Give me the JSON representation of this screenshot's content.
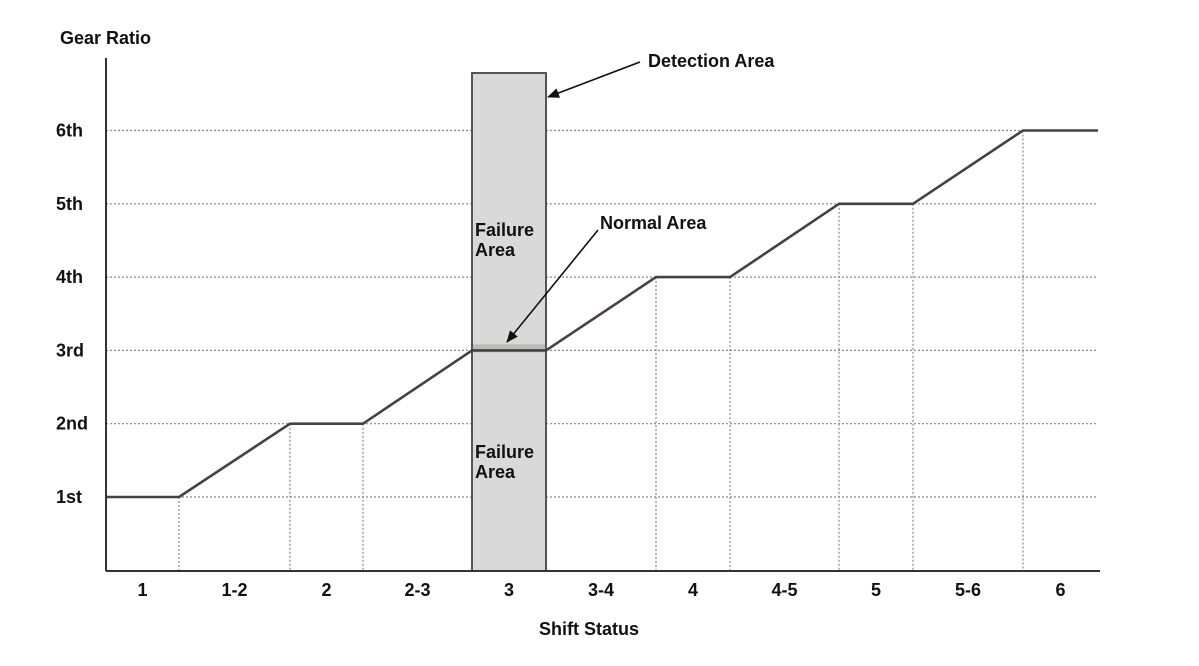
{
  "y_axis_title": "Gear Ratio",
  "x_axis_title": "Shift Status",
  "y_ticks": [
    "1st",
    "2nd",
    "3rd",
    "4th",
    "5th",
    "6th"
  ],
  "x_ticks": [
    "1",
    "1-2",
    "2",
    "2-3",
    "3",
    "3-4",
    "4",
    "4-5",
    "5",
    "5-6",
    "6"
  ],
  "annotations": {
    "detection_area": "Detection Area",
    "normal_area": "Normal Area",
    "failure_area_upper": [
      "Failure",
      "Area"
    ],
    "failure_area_lower": [
      "Failure",
      "Area"
    ]
  },
  "colors": {
    "line": "#4a4042",
    "axis": "#333333",
    "grid": "#888888",
    "detection_fill": "#d9d9d9",
    "detection_stroke": "#555555"
  },
  "chart_data": {
    "type": "line",
    "categories": [
      "1",
      "1-2",
      "2",
      "2-3",
      "3",
      "3-4",
      "4",
      "4-5",
      "5",
      "5-6",
      "6"
    ],
    "series": [
      {
        "values": [
          1,
          1.5,
          2,
          2.5,
          3,
          3.5,
          4,
          4.5,
          5,
          5.5,
          6
        ]
      }
    ],
    "ylabel": "Gear Ratio",
    "xlabel": "Shift Status",
    "yticks": [
      "1st",
      "2nd",
      "3rd",
      "4th",
      "5th",
      "6th"
    ],
    "highlight_category": "3"
  }
}
